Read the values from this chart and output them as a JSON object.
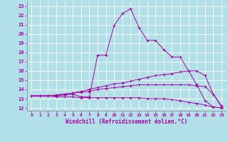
{
  "xlabel": "Windchill (Refroidissement éolien,°C)",
  "bg_color": "#b2e0e8",
  "line_color": "#aa00aa",
  "grid_color": "#ffffff",
  "x_ticks": [
    0,
    1,
    2,
    3,
    4,
    5,
    6,
    7,
    8,
    9,
    10,
    11,
    12,
    13,
    14,
    15,
    16,
    17,
    18,
    19,
    20,
    21,
    22,
    23
  ],
  "y_ticks": [
    12,
    13,
    14,
    15,
    16,
    17,
    18,
    19,
    20,
    21,
    22,
    23
  ],
  "xlim": [
    -0.5,
    23.5
  ],
  "ylim": [
    11.7,
    23.5
  ],
  "lines": [
    {
      "x": [
        0,
        1,
        2,
        3,
        4,
        5,
        6,
        7,
        8,
        9,
        10,
        11,
        12,
        13,
        14,
        15,
        16,
        17,
        18,
        19,
        20,
        21,
        22,
        23
      ],
      "y": [
        13.3,
        13.3,
        13.3,
        13.3,
        13.4,
        13.5,
        13.2,
        13.2,
        17.7,
        17.7,
        20.9,
        22.2,
        22.7,
        20.7,
        19.3,
        19.3,
        18.3,
        17.5,
        17.5,
        16.0,
        14.5,
        12.8,
        12.1,
        12.0
      ]
    },
    {
      "x": [
        0,
        1,
        2,
        3,
        4,
        5,
        6,
        7,
        8,
        9,
        10,
        11,
        12,
        13,
        14,
        15,
        16,
        17,
        18,
        19,
        20,
        21,
        22,
        23
      ],
      "y": [
        13.3,
        13.3,
        13.3,
        13.4,
        13.5,
        13.6,
        13.8,
        14.0,
        14.2,
        14.4,
        14.6,
        14.7,
        14.9,
        15.1,
        15.3,
        15.5,
        15.6,
        15.7,
        15.9,
        16.0,
        16.0,
        15.5,
        13.5,
        12.2
      ]
    },
    {
      "x": [
        0,
        1,
        2,
        3,
        4,
        5,
        6,
        7,
        8,
        9,
        10,
        11,
        12,
        13,
        14,
        15,
        16,
        17,
        18,
        19,
        20,
        21,
        22,
        23
      ],
      "y": [
        13.3,
        13.3,
        13.3,
        13.4,
        13.5,
        13.6,
        13.7,
        13.8,
        14.0,
        14.1,
        14.2,
        14.3,
        14.4,
        14.5,
        14.5,
        14.5,
        14.5,
        14.5,
        14.5,
        14.5,
        14.4,
        14.3,
        13.5,
        12.1
      ]
    },
    {
      "x": [
        0,
        1,
        2,
        3,
        4,
        5,
        6,
        7,
        8,
        9,
        10,
        11,
        12,
        13,
        14,
        15,
        16,
        17,
        18,
        19,
        20,
        21,
        22,
        23
      ],
      "y": [
        13.3,
        13.3,
        13.3,
        13.2,
        13.2,
        13.2,
        13.1,
        13.1,
        13.1,
        13.1,
        13.1,
        13.1,
        13.1,
        13.1,
        13.0,
        13.0,
        13.0,
        12.9,
        12.8,
        12.6,
        12.5,
        12.3,
        12.1,
        12.0
      ]
    }
  ]
}
